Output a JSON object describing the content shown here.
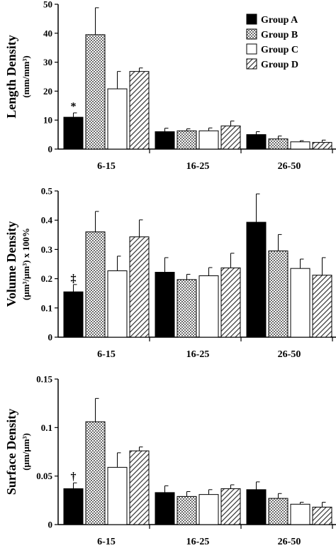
{
  "legend": [
    {
      "name": "Group A",
      "color": "#000000",
      "pattern": "solid"
    },
    {
      "name": "Group B",
      "color": "#bdbdbd",
      "pattern": "dots"
    },
    {
      "name": "Group C",
      "color": "#ffffff",
      "pattern": "none"
    },
    {
      "name": "Group D",
      "color": "#a0a0a0",
      "pattern": "hatch"
    }
  ],
  "chart_data": [
    {
      "type": "bar",
      "ylabel_main": "Length Density",
      "ylabel_unit": "(mm/mm³)",
      "ylim": [
        0,
        50
      ],
      "yticks": [
        "0",
        "10",
        "20",
        "30",
        "40",
        "50"
      ],
      "ytick_values": [
        0,
        10,
        20,
        30,
        40,
        50
      ],
      "categories": [
        "6-15",
        "16-25",
        "26-50"
      ],
      "legend_position": "top-right",
      "series": [
        {
          "name": "Group A",
          "values": [
            11,
            6,
            5
          ],
          "errors": [
            1.5,
            1.2,
            1.0
          ]
        },
        {
          "name": "Group B",
          "values": [
            39.5,
            6.3,
            3.5
          ],
          "errors": [
            9.3,
            0.7,
            1.0
          ]
        },
        {
          "name": "Group C",
          "values": [
            20.8,
            6.3,
            2.5
          ],
          "errors": [
            6.0,
            1.0,
            0.4
          ]
        },
        {
          "name": "Group D",
          "values": [
            26.8,
            8,
            2.3
          ],
          "errors": [
            1.2,
            1.7,
            0.8
          ]
        }
      ],
      "annotation": {
        "text": "*",
        "category": 0,
        "series": 0
      }
    },
    {
      "type": "bar",
      "ylabel_main": "Volume Density",
      "ylabel_unit": "(μm³/μm³) x 100%",
      "ylim": [
        0,
        0.5
      ],
      "yticks": [
        "0",
        "0.1",
        "0.2",
        "0.3",
        "0.4",
        "0.5"
      ],
      "ytick_values": [
        0,
        0.1,
        0.2,
        0.3,
        0.4,
        0.5
      ],
      "categories": [
        "6-15",
        "16-25",
        "26-50"
      ],
      "series": [
        {
          "name": "Group A",
          "values": [
            0.155,
            0.222,
            0.393
          ],
          "errors": [
            0.025,
            0.05,
            0.097
          ]
        },
        {
          "name": "Group B",
          "values": [
            0.36,
            0.197,
            0.295
          ],
          "errors": [
            0.07,
            0.018,
            0.056
          ]
        },
        {
          "name": "Group C",
          "values": [
            0.227,
            0.21,
            0.235
          ],
          "errors": [
            0.05,
            0.028,
            0.032
          ]
        },
        {
          "name": "Group D",
          "values": [
            0.343,
            0.237,
            0.212
          ],
          "errors": [
            0.058,
            0.05,
            0.06
          ]
        }
      ],
      "annotation": {
        "text": "‡",
        "category": 0,
        "series": 0
      }
    },
    {
      "type": "bar",
      "ylabel_main": "Surface Density",
      "ylabel_unit": "(μm/μm³)",
      "ylim": [
        0,
        0.15
      ],
      "yticks": [
        "0",
        "0.05",
        "0.1",
        "0.15"
      ],
      "ytick_values": [
        0,
        0.05,
        0.1,
        0.15
      ],
      "categories": [
        "6-15",
        "16-25",
        "26-50"
      ],
      "series": [
        {
          "name": "Group A",
          "values": [
            0.037,
            0.033,
            0.036
          ],
          "errors": [
            0.006,
            0.007,
            0.008
          ]
        },
        {
          "name": "Group B",
          "values": [
            0.106,
            0.029,
            0.027
          ],
          "errors": [
            0.024,
            0.005,
            0.005
          ]
        },
        {
          "name": "Group C",
          "values": [
            0.059,
            0.031,
            0.021
          ],
          "errors": [
            0.015,
            0.005,
            0.002
          ]
        },
        {
          "name": "Group D",
          "values": [
            0.076,
            0.037,
            0.018
          ],
          "errors": [
            0.004,
            0.004,
            0.005
          ]
        }
      ],
      "annotation": {
        "text": "†",
        "category": 0,
        "series": 0
      }
    }
  ]
}
